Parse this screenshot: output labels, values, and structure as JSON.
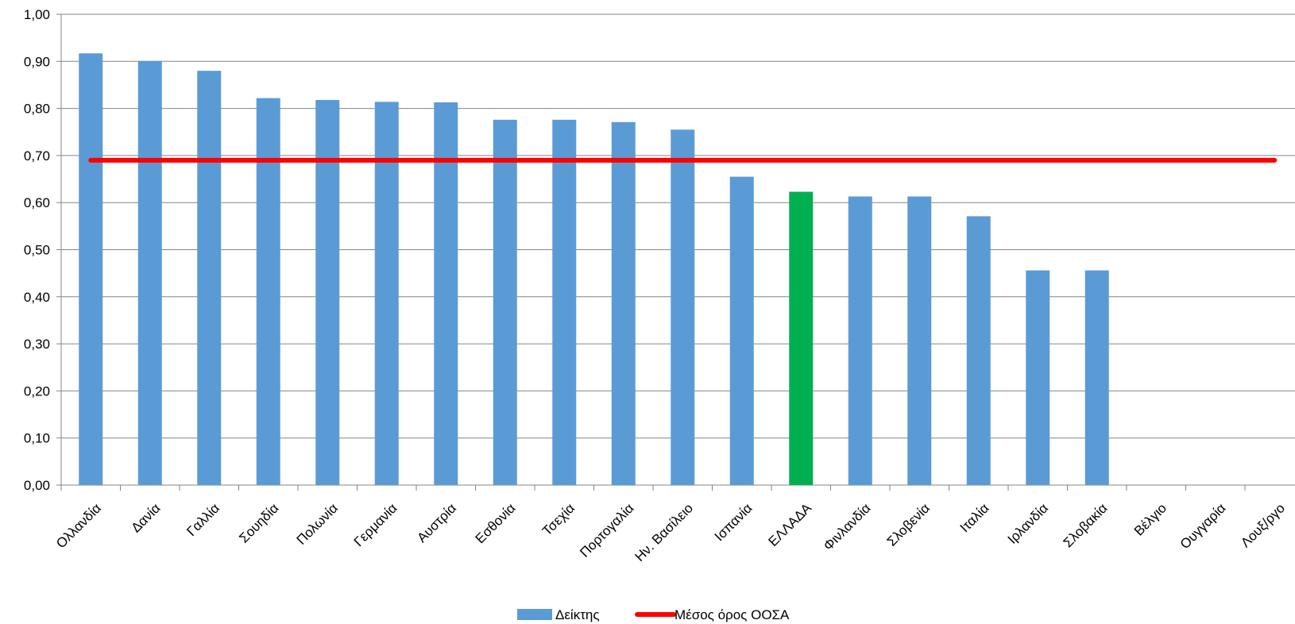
{
  "chart_data": {
    "type": "bar",
    "categories": [
      "Ολλανδία",
      "Δανία",
      "Γαλλία",
      "Σουηδία",
      "Πολωνία",
      "Γερμανία",
      "Αυστρία",
      "Εσθονία",
      "Τσεχία",
      "Πορτογαλία",
      "Ην. Βασίλειο",
      "Ισπανία",
      "ΕΛΛΑΔΑ",
      "Φινλανδία",
      "Σλοβενία",
      "Ιταλία",
      "Ιρλανδία",
      "Σλοβακία",
      "Βέλγιο",
      "Ουγγαρία",
      "Λουξ/ργο"
    ],
    "series": [
      {
        "name": "Δείκτης",
        "values": [
          0.917,
          0.901,
          0.88,
          0.822,
          0.818,
          0.814,
          0.813,
          0.776,
          0.776,
          0.771,
          0.755,
          0.655,
          0.623,
          0.613,
          0.613,
          0.571,
          0.456,
          0.456,
          null,
          null,
          null
        ],
        "color": "#5b9bd5",
        "highlight": {
          "category": "ΕΛΛΑΔΑ",
          "color": "#00b050"
        }
      },
      {
        "name": "Μέσος όρος ΟΟΣΑ",
        "type": "line",
        "value": 0.69,
        "color": "#ff0000"
      }
    ],
    "y_ticks": [
      "0,00",
      "0,10",
      "0,20",
      "0,30",
      "0,40",
      "0,50",
      "0,60",
      "0,70",
      "0,80",
      "0,90",
      "1,00"
    ],
    "ylim": [
      0,
      1.0
    ],
    "grid": true,
    "legend_position": "bottom-center",
    "title": "",
    "xlabel": "",
    "ylabel": ""
  }
}
